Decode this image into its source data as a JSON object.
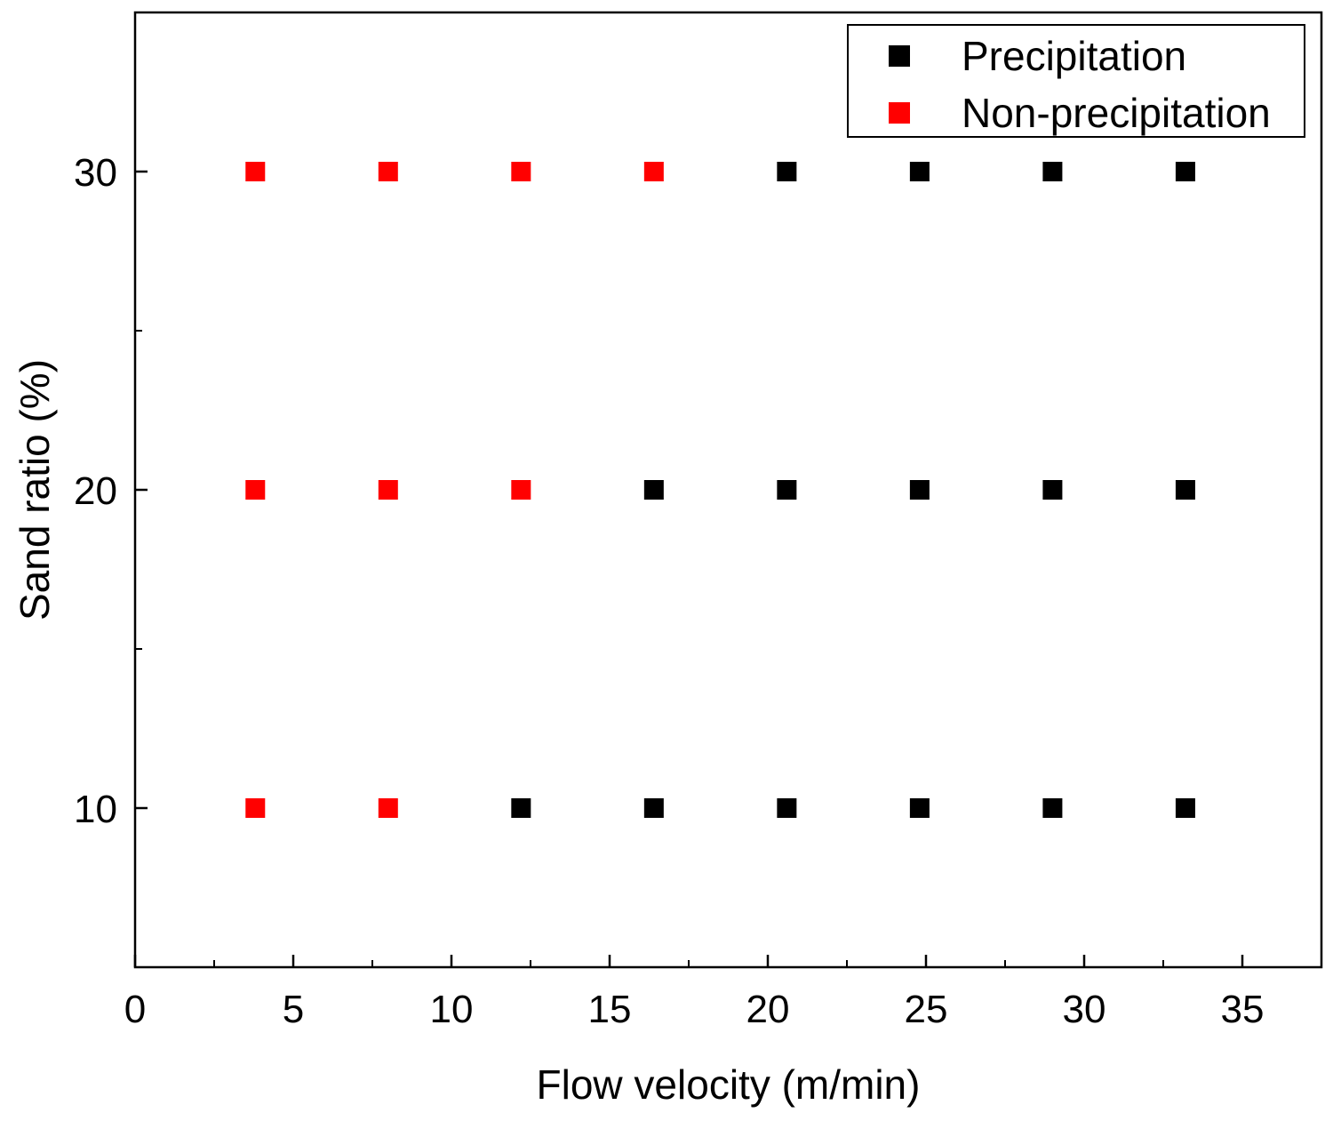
{
  "chart_data": {
    "type": "scatter",
    "title": "",
    "xlabel": "Flow velocity (m/min)",
    "ylabel": "Sand ratio (%)",
    "xlim": [
      0,
      37.5
    ],
    "ylim": [
      5,
      35
    ],
    "x_ticks": [
      0,
      5,
      10,
      15,
      20,
      25,
      30,
      35
    ],
    "y_ticks": [
      10,
      20,
      30
    ],
    "grid": false,
    "legend_position": "top-right",
    "series": [
      {
        "name": "Precipitation",
        "color": "#000000",
        "marker": "square",
        "points": [
          {
            "x": 20.6,
            "y": 30
          },
          {
            "x": 24.8,
            "y": 30
          },
          {
            "x": 29.0,
            "y": 30
          },
          {
            "x": 33.2,
            "y": 30
          },
          {
            "x": 16.4,
            "y": 20
          },
          {
            "x": 20.6,
            "y": 20
          },
          {
            "x": 24.8,
            "y": 20
          },
          {
            "x": 29.0,
            "y": 20
          },
          {
            "x": 33.2,
            "y": 20
          },
          {
            "x": 12.2,
            "y": 10
          },
          {
            "x": 16.4,
            "y": 10
          },
          {
            "x": 20.6,
            "y": 10
          },
          {
            "x": 24.8,
            "y": 10
          },
          {
            "x": 29.0,
            "y": 10
          },
          {
            "x": 33.2,
            "y": 10
          }
        ]
      },
      {
        "name": "Non-precipitation",
        "color": "#ff0000",
        "marker": "square",
        "points": [
          {
            "x": 3.8,
            "y": 30
          },
          {
            "x": 8.0,
            "y": 30
          },
          {
            "x": 12.2,
            "y": 30
          },
          {
            "x": 16.4,
            "y": 30
          },
          {
            "x": 3.8,
            "y": 20
          },
          {
            "x": 8.0,
            "y": 20
          },
          {
            "x": 12.2,
            "y": 20
          },
          {
            "x": 3.8,
            "y": 10
          },
          {
            "x": 8.0,
            "y": 10
          }
        ]
      }
    ]
  }
}
